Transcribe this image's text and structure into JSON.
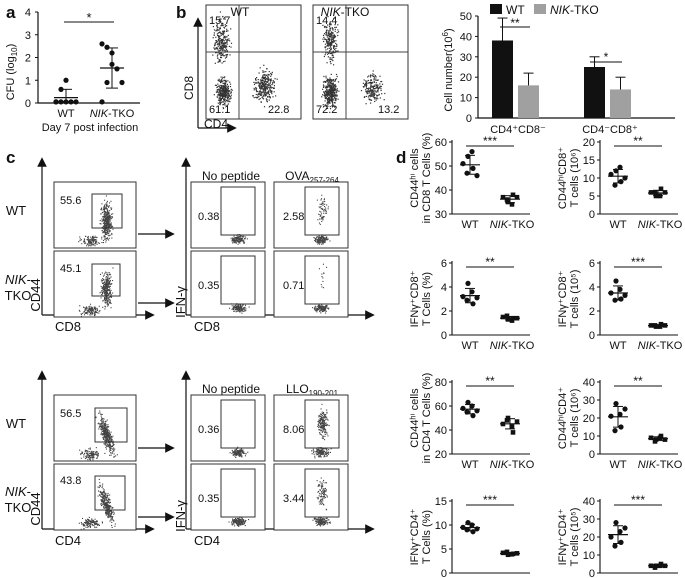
{
  "panel_letters": {
    "a": "a",
    "b": "b",
    "c": "c",
    "d": "d"
  },
  "panel_a": {
    "ylabel": "CFU (log",
    "ylabel_sub": "10",
    "ylabel_close": ")",
    "yticks": [
      "0",
      "1",
      "2",
      "3",
      "4"
    ],
    "xcats": [
      "WT",
      "NIK-TKO"
    ],
    "xcat_wt": "WT",
    "xcat_nik": "NIK",
    "xcat_tko": "-TKO",
    "caption": "Day 7 post infection",
    "sig": "*"
  },
  "panel_b": {
    "wt_title": "WT",
    "nik_title_italic": "NIK",
    "nik_title_rest": "-TKO",
    "ylabel": "CD8",
    "xlabel": "CD4",
    "wt_quads": {
      "ul": "15.7",
      "ll": "61.1",
      "lr": "22.8"
    },
    "nik_quads": {
      "ul": "14.4",
      "ll": "72.2",
      "lr": "13.2"
    },
    "bar_ylabel": "Cell number(10",
    "bar_ylabel_sup": "6",
    "bar_ylabel_close": ")",
    "bar_yticks": [
      "0",
      "10",
      "20",
      "30",
      "40",
      "50"
    ],
    "legend_wt": "WT",
    "legend_nik_it": "NIK",
    "legend_nik_rest": "-TKO",
    "cat1": "CD4⁺CD8⁻",
    "cat2": "CD4⁻CD8⁺",
    "sig1": "**",
    "sig2": "*"
  },
  "chart_data": {
    "type": "bar",
    "categories": [
      "CD4⁺CD8⁻",
      "CD4⁻CD8⁺"
    ],
    "series": [
      {
        "name": "WT",
        "values": [
          38,
          25
        ],
        "err": [
          11,
          5
        ],
        "color": "#111111"
      },
      {
        "name": "NIK-TKO",
        "values": [
          16,
          14
        ],
        "err": [
          6,
          6
        ],
        "color": "#a0a0a0"
      }
    ],
    "ylabel": "Cell number(10⁶)",
    "ylim": [
      0,
      50
    ]
  },
  "panel_c": {
    "row_wt": "WT",
    "row_nik_it": "NIK",
    "row_nik_rest": "-",
    "row_tko": "TKO",
    "cd44": "CD44",
    "cd8": "CD8",
    "cd4": "CD4",
    "ifng": "IFN-γ",
    "no_peptide": "No peptide",
    "ova": "OVA",
    "ova_sub": "257-264",
    "llo": "LLO",
    "llo_sub": "190-201",
    "top_gate": {
      "wt": "55.6",
      "nik": "45.1"
    },
    "top_ifn": {
      "wt_np": "0.38",
      "wt_pep": "2.58",
      "nik_np": "0.35",
      "nik_pep": "0.71"
    },
    "bot_gate": {
      "wt": "56.5",
      "nik": "43.8"
    },
    "bot_ifn": {
      "wt_np": "0.36",
      "wt_pep": "8.06",
      "nik_np": "0.35",
      "nik_pep": "3.44"
    }
  },
  "panel_d": {
    "wt": "WT",
    "nik_it": "NIK",
    "nik_rest": "-TKO",
    "p1": {
      "l1": "CD44ʰⁱ cells",
      "l2": "in CD8 T Cells (%)",
      "yticks": [
        "30",
        "40",
        "50",
        "60"
      ],
      "sig": "***",
      "wt": [
        51,
        54,
        49,
        47,
        56,
        46
      ],
      "nik": [
        37,
        35,
        38,
        36,
        34,
        37
      ]
    },
    "p2": {
      "l1": "CD44ʰⁱCD8⁺",
      "l2": "T cells (10⁶)",
      "yticks": [
        "0",
        "5",
        "10",
        "15",
        "20"
      ],
      "sig": "**",
      "wt": [
        11,
        12,
        9,
        8,
        13,
        10
      ],
      "nik": [
        6,
        5,
        7,
        6,
        5,
        6
      ]
    },
    "p3": {
      "l1": "IFNγ⁺CD8⁺",
      "l2": "T Cells (%)",
      "yticks": [
        "0",
        "2",
        "4",
        "6"
      ],
      "sig": "**",
      "wt": [
        3.2,
        4.3,
        2.6,
        2.9,
        3.6,
        3.1
      ],
      "nik": [
        1.5,
        1.3,
        1.4,
        1.6,
        1.2,
        1.4
      ]
    },
    "p4": {
      "l1": "IFNγ⁺CD8⁺",
      "l2": "T cells (10⁵)",
      "yticks": [
        "0",
        "2",
        "4",
        "6"
      ],
      "sig": "***",
      "wt": [
        3.5,
        4.5,
        3.0,
        2.9,
        3.8,
        3.3
      ],
      "nik": [
        0.8,
        0.7,
        0.9,
        0.8,
        0.7,
        0.8
      ]
    },
    "p5": {
      "l1": "CD44ʰⁱ cells",
      "l2": "in CD4 T Cells (%)",
      "yticks": [
        "20",
        "40",
        "60",
        "80"
      ],
      "sig": "**",
      "wt": [
        58,
        63,
        52,
        55,
        60,
        56
      ],
      "nik": [
        45,
        50,
        38,
        48,
        43,
        47
      ]
    },
    "p6": {
      "l1": "CD44ʰⁱCD4⁺",
      "l2": "T cells (10⁶)",
      "yticks": [
        "0",
        "10",
        "20",
        "30",
        "40"
      ],
      "sig": "**",
      "wt": [
        21,
        28,
        15,
        13,
        22,
        25
      ],
      "nik": [
        9,
        8,
        10,
        7,
        9,
        8
      ]
    },
    "p7": {
      "l1": "IFNγ⁺CD4⁺",
      "l2": "T Cells (%)",
      "yticks": [
        "0",
        "5",
        "10",
        "15"
      ],
      "sig": "***",
      "wt": [
        9.5,
        10.5,
        8.6,
        9.0,
        10.0,
        9.2
      ],
      "nik": [
        4.2,
        3.8,
        4.0,
        4.4,
        3.9,
        4.1
      ]
    },
    "p8": {
      "l1": "IFNγ⁺CD4⁺",
      "l2": "T cells (10⁵)",
      "yticks": [
        "0",
        "10",
        "20",
        "30",
        "40"
      ],
      "sig": "***",
      "wt": [
        20,
        28,
        17,
        15,
        23,
        25
      ],
      "nik": [
        4,
        4,
        5,
        3,
        4,
        4
      ]
    }
  },
  "panel_a_data": {
    "wt": [
      0.05,
      0.05,
      0.05,
      0.05,
      0.05,
      0.05,
      0.6,
      1.0
    ],
    "nik": [
      2.6,
      2.45,
      1.7,
      1.5,
      0.9,
      0.05,
      0.9,
      2.2
    ]
  }
}
